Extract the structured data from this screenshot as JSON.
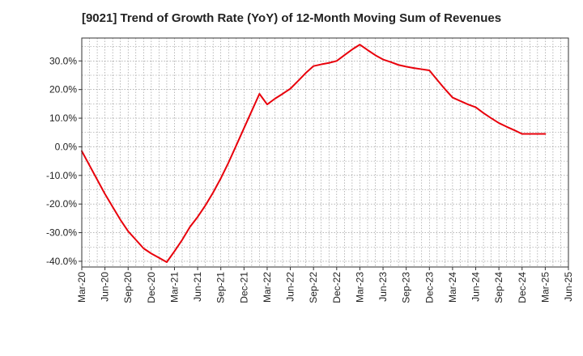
{
  "chart_data": {
    "type": "line",
    "title": "[9021]  Trend of Growth Rate (YoY) of 12-Month Moving Sum of Revenues",
    "xlabel": "",
    "ylabel": "",
    "x_ticks": [
      "Mar-20",
      "Jun-20",
      "Sep-20",
      "Dec-20",
      "Mar-21",
      "Jun-21",
      "Sep-21",
      "Dec-21",
      "Mar-22",
      "Jun-22",
      "Sep-22",
      "Dec-22",
      "Mar-23",
      "Jun-23",
      "Sep-23",
      "Dec-23",
      "Mar-24",
      "Jun-24",
      "Sep-24",
      "Dec-24",
      "Mar-25",
      "Jun-25"
    ],
    "y_ticks": [
      -40,
      -30,
      -20,
      -10,
      0,
      10,
      20,
      30
    ],
    "y_tick_labels": [
      "-40.0%",
      "-30.0%",
      "-20.0%",
      "-10.0%",
      "0.0%",
      "10.0%",
      "20.0%",
      "30.0%"
    ],
    "ylim": [
      -42,
      38
    ],
    "grid": true,
    "series": [
      {
        "color": "#e8000b",
        "x": [
          "Mar-20",
          "Apr-20",
          "May-20",
          "Jun-20",
          "Jul-20",
          "Aug-20",
          "Sep-20",
          "Oct-20",
          "Nov-20",
          "Dec-20",
          "Jan-21",
          "Feb-21",
          "Mar-21",
          "Apr-21",
          "May-21",
          "Jun-21",
          "Jul-21",
          "Aug-21",
          "Sep-21",
          "Oct-21",
          "Nov-21",
          "Dec-21",
          "Jan-22",
          "Feb-22",
          "Mar-22",
          "Apr-22",
          "May-22",
          "Jun-22",
          "Jul-22",
          "Aug-22",
          "Sep-22",
          "Oct-22",
          "Nov-22",
          "Dec-22",
          "Jan-23",
          "Feb-23",
          "Mar-23",
          "Apr-23",
          "May-23",
          "Jun-23",
          "Jul-23",
          "Aug-23",
          "Sep-23",
          "Oct-23",
          "Nov-23",
          "Dec-23",
          "Jan-24",
          "Feb-24",
          "Mar-24",
          "Apr-24",
          "May-24",
          "Jun-24",
          "Jul-24",
          "Aug-24",
          "Sep-24",
          "Oct-24",
          "Nov-24",
          "Dec-24",
          "Jan-25",
          "Feb-25",
          "Mar-25"
        ],
        "values": [
          -1.5,
          -6.5,
          -11.5,
          -16.5,
          -21,
          -25.5,
          -29.5,
          -32.5,
          -35.5,
          -37.3,
          -38.8,
          -40.3,
          -36.5,
          -32.5,
          -28,
          -24.5,
          -20.5,
          -16,
          -11,
          -5.5,
          0.5,
          6.5,
          12.5,
          18.5,
          14.8,
          16.8,
          18.5,
          20.3,
          23,
          25.8,
          28.2,
          28.8,
          29.3,
          30,
          32,
          34,
          35.7,
          33.8,
          32,
          30.5,
          29.6,
          28.6,
          28,
          27.5,
          27.1,
          26.7,
          23.4,
          20.2,
          17.2,
          16,
          14.8,
          13.8,
          11.8,
          10,
          8.3,
          7,
          5.8,
          4.5,
          4.5,
          4.5,
          4.5
        ]
      }
    ]
  }
}
